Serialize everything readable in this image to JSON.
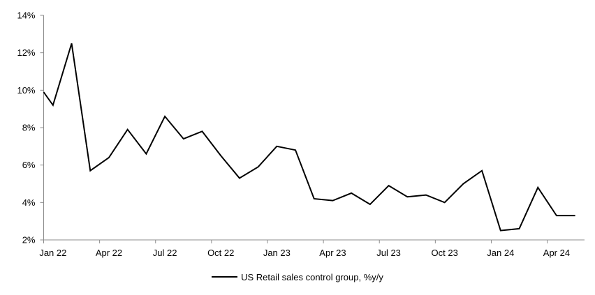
{
  "page": {
    "background": "#ffffff"
  },
  "chart_data": {
    "type": "line",
    "title": "",
    "xlabel": "",
    "ylabel": "",
    "categories": [
      "Jan 22",
      "Feb 22",
      "Mar 22",
      "Apr 22",
      "May 22",
      "Jun 22",
      "Jul 22",
      "Aug 22",
      "Sep 22",
      "Oct 22",
      "Nov 22",
      "Dec 22",
      "Jan 23",
      "Feb 23",
      "Mar 23",
      "Apr 23",
      "May 23",
      "Jun 23",
      "Jul 23",
      "Aug 23",
      "Sep 23",
      "Oct 23",
      "Nov 23",
      "Dec 23",
      "Jan 24",
      "Feb 24",
      "Mar 24",
      "Apr 24",
      "May 24"
    ],
    "series": [
      {
        "name": "US Retail sales control group, %y/y",
        "color": "#000000",
        "values": [
          9.2,
          12.5,
          5.7,
          6.4,
          7.9,
          6.6,
          8.6,
          7.4,
          7.8,
          6.5,
          5.3,
          5.9,
          7.0,
          6.8,
          4.2,
          4.1,
          4.5,
          3.9,
          4.9,
          4.3,
          4.4,
          4.0,
          5.0,
          5.7,
          2.5,
          2.6,
          4.8,
          3.3,
          3.3
        ],
        "left_edge_entry_value": 9.9
      }
    ],
    "ylim": [
      2,
      14
    ],
    "ytick_step": 2,
    "ytick_labels": [
      "2%",
      "4%",
      "6%",
      "8%",
      "10%",
      "12%",
      "14%"
    ],
    "x_tick_labels": [
      "Jan 22",
      "Apr 22",
      "Jul 22",
      "Oct 22",
      "Jan 23",
      "Apr 23",
      "Jul 23",
      "Oct 23",
      "Jan 24",
      "Apr 24"
    ],
    "x_tick_interval": 3,
    "grid": false,
    "legend": {
      "label": "US Retail sales control group, %y/y",
      "position": "bottom-center"
    },
    "axis_color": "#8c8c8c",
    "text_color": "#000000"
  }
}
